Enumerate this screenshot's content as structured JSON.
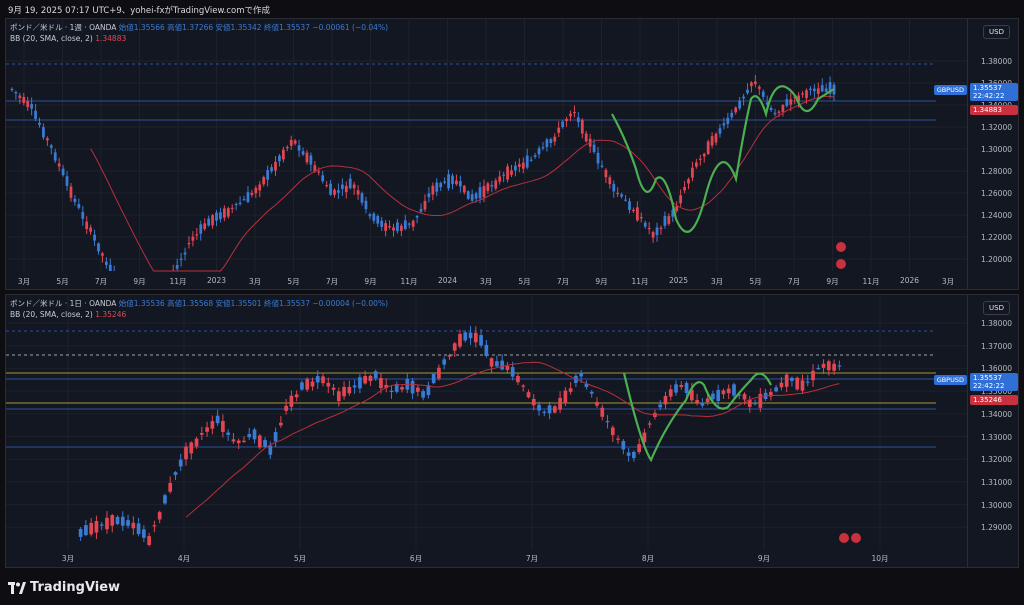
{
  "header": {
    "text": "9月 19, 2025 07:17 UTC+9、yohei-fxがTradingView.comで作成"
  },
  "colors": {
    "up": "#e24653",
    "down": "#3a7bd5",
    "bb": "#b7303c",
    "pattern": "#4caf50",
    "bg": "#131722"
  },
  "top_chart": {
    "legend_line1": "ポンド／米ドル · 1週 · OANDA",
    "ohlc": "始値1.35566  高値1.37266  安値1.35342  終値1.35537  −0.00061 (−0.04%)",
    "legend_line2": "BB (20, SMA, close, 2)",
    "bb_value": "1.34883",
    "currency": "USD",
    "symbol": "GBPUSD",
    "price_tag": "1.35537",
    "timer": "22:42:22",
    "bb_tag": "1.34883",
    "price_labels": [
      "1.38000",
      "1.36000",
      "1.34000",
      "1.32000",
      "1.30000",
      "1.28000",
      "1.26000",
      "1.24000",
      "1.22000",
      "1.20000"
    ],
    "time_labels": [
      "3月",
      "5月",
      "7月",
      "9月",
      "11月",
      "2023",
      "3月",
      "5月",
      "7月",
      "9月",
      "11月",
      "2024",
      "3月",
      "5月",
      "7月",
      "9月",
      "11月",
      "2025",
      "3月",
      "5月",
      "7月",
      "9月",
      "11月",
      "2026",
      "3月"
    ]
  },
  "bottom_chart": {
    "legend_line1": "ポンド／米ドル · 1日 · OANDA",
    "ohlc": "始値1.35536  高値1.35568  安値1.35501  終値1.35537  −0.00004 (−0.00%)",
    "legend_line2": "BB (20, SMA, close, 2)",
    "bb_value": "1.35246",
    "currency": "USD",
    "symbol": "GBPUSD",
    "price_tag": "1.35537",
    "timer": "22:42:22",
    "bb_tag": "1.35246",
    "price_labels": [
      "1.38000",
      "1.37000",
      "1.36000",
      "1.35000",
      "1.34000",
      "1.33000",
      "1.32000",
      "1.31000",
      "1.30000",
      "1.29000"
    ],
    "time_labels": [
      "3月",
      "4月",
      "5月",
      "6月",
      "7月",
      "8月",
      "9月",
      "10月"
    ]
  },
  "footer": {
    "brand": "TradingView"
  }
}
